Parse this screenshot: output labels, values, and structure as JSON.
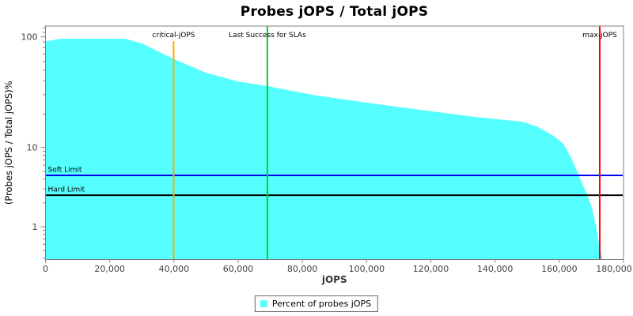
{
  "title": "Probes jOPS / Total jOPS",
  "chart_data": {
    "type": "area",
    "title": "Probes jOPS / Total jOPS",
    "xlabel": "jOPS",
    "ylabel": "(Probes jOPS / Total jOPS)%",
    "x_scale": "linear",
    "y_scale": "log",
    "xlim": [
      0,
      180000
    ],
    "ylim": [
      0.39,
      125
    ],
    "grid": false,
    "x_ticks": [
      0,
      20000,
      40000,
      60000,
      80000,
      100000,
      120000,
      140000,
      160000,
      180000
    ],
    "x_tick_labels": [
      "0",
      "20,000",
      "40,000",
      "60,000",
      "80,000",
      "100,000",
      "120,000",
      "140,000",
      "160,000",
      "180,000"
    ],
    "y_major_ticks": [
      1,
      10,
      100
    ],
    "y_tick_labels": [
      "1",
      "10",
      "100"
    ],
    "series": [
      {
        "name": "Percent of probes jOPS",
        "color": "#55FFFF",
        "points": [
          [
            100,
            91
          ],
          [
            4800,
            96.3
          ],
          [
            24800,
            96.3
          ],
          [
            30200,
            87
          ],
          [
            40000,
            63
          ],
          [
            49900,
            47.5
          ],
          [
            59800,
            39.6
          ],
          [
            69100,
            35.9
          ],
          [
            84400,
            29.5
          ],
          [
            109000,
            23.4
          ],
          [
            133700,
            18.9
          ],
          [
            148500,
            17.1
          ],
          [
            153400,
            15.3
          ],
          [
            158300,
            12.7
          ],
          [
            161300,
            10.8
          ],
          [
            163700,
            7.4
          ],
          [
            166000,
            4.55
          ],
          [
            167400,
            3.3
          ],
          [
            168700,
            2.56
          ],
          [
            170100,
            1.77
          ],
          [
            171400,
            1.05
          ],
          [
            172400,
            0.59
          ],
          [
            173350,
            0.41
          ]
        ]
      }
    ],
    "vlines": [
      {
        "id": "critical-jops",
        "label": "critical-jOPS",
        "x": 39900,
        "color": "#FFAA00",
        "full_height": false
      },
      {
        "id": "last-success-slas",
        "label": "Last Success for SLAs",
        "x": 69100,
        "color": "#00D41E",
        "full_height": true
      },
      {
        "id": "max-jops",
        "label": "max-jOPS",
        "x": 172600,
        "color": "#FF0000",
        "full_height": true
      }
    ],
    "hlines": [
      {
        "id": "soft-limit",
        "label": "Soft Limit",
        "y": 4.45,
        "color": "#0000EE"
      },
      {
        "id": "hard-limit",
        "label": "Hard Limit",
        "y": 2.5,
        "color": "#000000"
      }
    ],
    "legend": {
      "position": "bottom-center",
      "label": "Percent of probes jOPS",
      "swatch_color": "#55FFFF"
    }
  },
  "colors": {
    "area_fill": "#55FFFF",
    "plot_border": "#808080",
    "tick_label": "#404040",
    "axis_title": "#333333"
  }
}
